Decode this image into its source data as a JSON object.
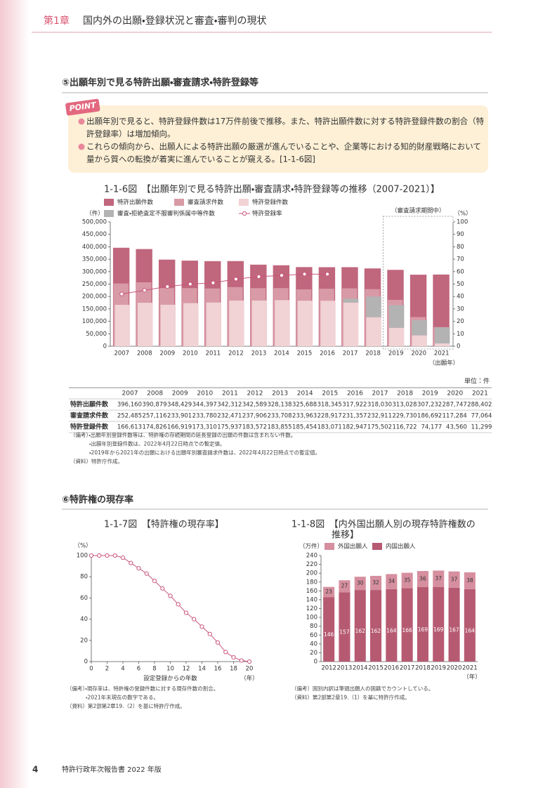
{
  "header": {
    "chapter": "第1章",
    "title": "国内外の出願・登録状況と審査・審判の現状"
  },
  "section5": {
    "heading": "⑤出願年別で見る特許出願・審査請求・特許登録等",
    "point_label": "POINT",
    "points": [
      [
        "出願年別で見ると、特許登録件数は17万件前後で推移。また、特許出願件数に対する特許登録件数の割合（特",
        "許登録率）は増加傾向。"
      ],
      [
        "これらの傾向から、出願人による特許出願の厳選が進んでいることや、企業等における知的財産戦略において",
        "量から質への転換が着実に進んでいることが窺える。[1-1-6図]"
      ]
    ]
  },
  "chart_data": [
    {
      "type": "bar",
      "title": "1-1-6図　【出願年別で見る特許出願・審査請求・特許登録等の推移（2007-2021）】",
      "y_label": "（件）",
      "y2_label": "（%）",
      "x_label": "（出願年）",
      "annotation": "（審査請求期間中）",
      "categories": [
        "2007",
        "2008",
        "2009",
        "2010",
        "2011",
        "2012",
        "2013",
        "2014",
        "2015",
        "2016",
        "2017",
        "2018",
        "2019",
        "2020",
        "2021"
      ],
      "series": [
        {
          "name": "特許出願件数",
          "color": "#c0667d",
          "values": [
            396160,
            390879,
            348429,
            344397,
            342312,
            342589,
            328138,
            325688,
            318345,
            317922,
            318030,
            313028,
            307232,
            287747,
            288402
          ]
        },
        {
          "name": "審査請求件数",
          "color": "#d89aa6",
          "values": [
            252485,
            257116,
            233901,
            233780,
            232471,
            237906,
            233708,
            233963,
            228917,
            231357,
            232911,
            229730,
            186692,
            117284,
            77064
          ]
        },
        {
          "name": "特許登録件数",
          "color": "#f1d2d5",
          "values": [
            166613,
            174826,
            166919,
            173310,
            175937,
            183572,
            183855,
            185454,
            183071,
            182947,
            175502,
            116722,
            74177,
            43560,
            11299
          ]
        },
        {
          "name": "審査・拒絶査定不服審判係属中等件数",
          "color": "#b3b3b3",
          "stack_on": 2,
          "values": [
            null,
            null,
            null,
            null,
            null,
            null,
            null,
            null,
            null,
            null,
            16000,
            83000,
            91000,
            61000,
            65000
          ]
        },
        {
          "name": "特許登録率",
          "color": "#c9567a",
          "type": "line",
          "axis": "y2",
          "values": [
            42,
            45,
            48,
            50,
            51,
            54,
            56,
            57,
            58,
            58,
            null,
            null,
            null,
            null,
            null
          ]
        }
      ],
      "ylim": [
        0,
        500000
      ],
      "yticks": [
        0,
        {
          "value": 50000,
          "label": "50,000"
        },
        {
          "value": 100000,
          "label": "100,000"
        },
        {
          "value": 150000,
          "label": "150,000"
        },
        {
          "value": 200000,
          "label": "200,000"
        },
        {
          "value": 250000,
          "label": "250,000"
        },
        {
          "value": 300000,
          "label": "300,000"
        },
        {
          "value": 350000,
          "label": "350,000"
        },
        {
          "value": 400000,
          "label": "400,000"
        },
        {
          "value": 450000,
          "label": "450,000"
        },
        {
          "value": 500000,
          "label": "500,000"
        }
      ],
      "y2lim": [
        0,
        100
      ],
      "y2ticks": [
        0,
        10,
        20,
        30,
        40,
        50,
        60,
        70,
        80,
        90,
        100
      ]
    },
    {
      "type": "line",
      "title": "1-1-7図　【特許権の現存率】",
      "y_label": "（%）",
      "x_label": "設定登録からの年数",
      "x_unit": "（年）",
      "color": "#c9567a",
      "x": [
        0,
        1,
        2,
        3,
        4,
        5,
        6,
        7,
        8,
        9,
        10,
        11,
        12,
        13,
        14,
        15,
        16,
        17,
        18,
        19,
        20
      ],
      "values": [
        100,
        100,
        100,
        100,
        98,
        93,
        88,
        83,
        76,
        69,
        62,
        54,
        46,
        40,
        33,
        26,
        18,
        9,
        4,
        1,
        0
      ],
      "xlim": [
        0,
        20
      ],
      "xticks": [
        0,
        2,
        4,
        6,
        8,
        10,
        12,
        14,
        16,
        18,
        20
      ],
      "ylim": [
        0,
        100
      ],
      "yticks": [
        0,
        20,
        40,
        60,
        80,
        100
      ]
    },
    {
      "type": "stacked_bar",
      "title": [
        "1-1-8図　【内外国出願人別の現存特許権数の",
        "推移】"
      ],
      "y_label": "（万件）",
      "x_label": "（年）",
      "categories": [
        "2012",
        "2013",
        "2014",
        "2015",
        "2016",
        "2017",
        "2018",
        "2019",
        "2020",
        "2021"
      ],
      "series": [
        {
          "name": "外国出願人",
          "color": "#d68f9f",
          "values": [
            23,
            27,
            30,
            32,
            34,
            35,
            36,
            37,
            37,
            38
          ]
        },
        {
          "name": "内国出願人",
          "color": "#b65a72",
          "values": [
            146,
            157,
            162,
            162,
            164,
            166,
            169,
            169,
            167,
            164
          ]
        }
      ],
      "ylim": [
        0,
        240
      ],
      "yticks": [
        0,
        20,
        40,
        60,
        80,
        100,
        120,
        140,
        160,
        180,
        200,
        220,
        240
      ]
    }
  ],
  "table": {
    "unit": "単位：件",
    "columns": [
      "2007",
      "2008",
      "2009",
      "2010",
      "2011",
      "2012",
      "2013",
      "2014",
      "2015",
      "2016",
      "2017",
      "2018",
      "2019",
      "2020",
      "2021"
    ],
    "rows": [
      {
        "label": "特許出願件数",
        "values": [
          "396,160",
          "390,879",
          "348,429",
          "344,397",
          "342,312",
          "342,589",
          "328,138",
          "325,688",
          "318,345",
          "317,922",
          "318,030",
          "313,028",
          "307,232",
          "287,747",
          "288,402"
        ]
      },
      {
        "label": "審査請求件数",
        "values": [
          "252,485",
          "257,116",
          "233,901",
          "233,780",
          "232,471",
          "237,906",
          "233,708",
          "233,963",
          "228,917",
          "231,357",
          "232,911",
          "229,730",
          "186,692",
          "117,284",
          "77,064"
        ]
      },
      {
        "label": "特許登録件数",
        "values": [
          "166,613",
          "174,826",
          "166,919",
          "173,310",
          "175,937",
          "183,572",
          "183,855",
          "185,454",
          "183,071",
          "182,947",
          "175,502",
          "116,722",
          "74,177",
          "43,560",
          "11,299"
        ]
      }
    ]
  },
  "notes1": [
    "（備考）・出願年別登録件数等は、特許権の存続期間の延長登録の出願の件数は含まれない件数。",
    "・出願年別登録件数は、2022年4月22日時点での暫定値。",
    "・2019年から2021年の出願における出願年別審査請求件数は、2022年4月22日時点での暫定値。",
    "（資料）特許庁作成。"
  ],
  "section6": {
    "heading": "⑥特許権の現存率"
  },
  "notes2": [
    "（備考）・現存率は、特許権の登録件数に対する現存件数の割合。",
    "・2021年末現在の数字である。",
    "（資料）第2部第2章19.（2）を基に特許庁作成。"
  ],
  "notes3": [
    "（備考）国別内訳は筆頭出願人の国籍でカウントしている。",
    "（資料）第2部第2章19.（1）を基に特許庁作成。"
  ],
  "footer": {
    "page": "4",
    "title": "特許行政年次報告書 2022 年版"
  }
}
